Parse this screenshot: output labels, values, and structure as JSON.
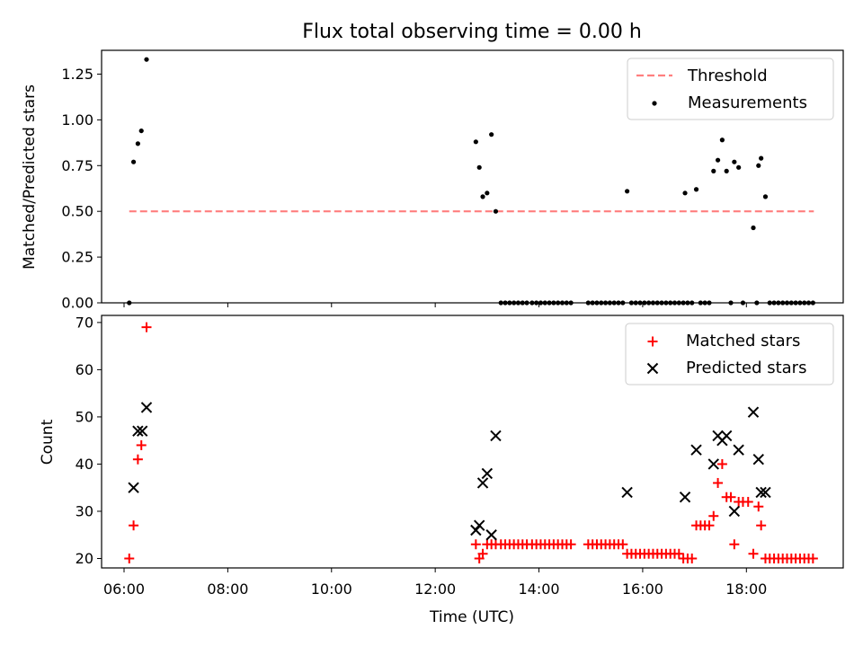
{
  "chart_data": {
    "type": "scatter",
    "title": "Flux total observing time = 0.00 h",
    "xlabel": "Time (UTC)",
    "x_unit": "time of day (UTC, HH:MM)",
    "x_range": [
      "05:34",
      "19:52"
    ],
    "x_ticks": [
      "06:00",
      "08:00",
      "10:00",
      "12:00",
      "14:00",
      "16:00",
      "18:00"
    ],
    "colors": {
      "threshold": "#ff7f7f",
      "measurements": "#000000",
      "matched": "#ff0000",
      "predicted": "#000000"
    },
    "panels": [
      {
        "ylabel": "Matched/Predicted stars",
        "ylim": [
          0,
          1.38
        ],
        "yticks": [
          "0.00",
          "0.25",
          "0.50",
          "0.75",
          "1.00",
          "1.25"
        ],
        "legend_position": "upper right",
        "threshold": {
          "name": "Threshold",
          "y": 0.5,
          "x_start": "06:06",
          "x_end": "19:18",
          "style": "dashed"
        },
        "measurements": {
          "name": "Measurements",
          "points": [
            [
              "06:06",
              0.0
            ],
            [
              "06:11",
              0.77
            ],
            [
              "06:16",
              0.87
            ],
            [
              "06:20",
              0.94
            ],
            [
              "06:26",
              1.33
            ],
            [
              "12:47",
              0.88
            ],
            [
              "12:51",
              0.74
            ],
            [
              "12:55",
              0.58
            ],
            [
              "13:00",
              0.6
            ],
            [
              "13:05",
              0.92
            ],
            [
              "13:10",
              0.5
            ],
            [
              "13:16",
              0.0
            ],
            [
              "13:21",
              0.0
            ],
            [
              "13:26",
              0.0
            ],
            [
              "13:31",
              0.0
            ],
            [
              "13:36",
              0.0
            ],
            [
              "13:41",
              0.0
            ],
            [
              "13:46",
              0.0
            ],
            [
              "13:52",
              0.0
            ],
            [
              "13:57",
              0.0
            ],
            [
              "14:02",
              0.0
            ],
            [
              "14:07",
              0.0
            ],
            [
              "14:12",
              0.0
            ],
            [
              "14:17",
              0.0
            ],
            [
              "14:22",
              0.0
            ],
            [
              "14:27",
              0.0
            ],
            [
              "14:32",
              0.0
            ],
            [
              "14:37",
              0.0
            ],
            [
              "14:57",
              0.0
            ],
            [
              "15:02",
              0.0
            ],
            [
              "15:07",
              0.0
            ],
            [
              "15:12",
              0.0
            ],
            [
              "15:17",
              0.0
            ],
            [
              "15:22",
              0.0
            ],
            [
              "15:27",
              0.0
            ],
            [
              "15:32",
              0.0
            ],
            [
              "15:37",
              0.0
            ],
            [
              "15:42",
              0.61
            ],
            [
              "15:47",
              0.0
            ],
            [
              "15:52",
              0.0
            ],
            [
              "15:57",
              0.0
            ],
            [
              "16:02",
              0.0
            ],
            [
              "16:07",
              0.0
            ],
            [
              "16:12",
              0.0
            ],
            [
              "16:17",
              0.0
            ],
            [
              "16:22",
              0.0
            ],
            [
              "16:27",
              0.0
            ],
            [
              "16:32",
              0.0
            ],
            [
              "16:37",
              0.0
            ],
            [
              "16:42",
              0.0
            ],
            [
              "16:47",
              0.0
            ],
            [
              "16:49",
              0.6
            ],
            [
              "16:52",
              0.0
            ],
            [
              "16:57",
              0.0
            ],
            [
              "17:02",
              0.62
            ],
            [
              "17:07",
              0.0
            ],
            [
              "17:12",
              0.0
            ],
            [
              "17:17",
              0.0
            ],
            [
              "17:22",
              0.72
            ],
            [
              "17:27",
              0.78
            ],
            [
              "17:32",
              0.89
            ],
            [
              "17:37",
              0.72
            ],
            [
              "17:42",
              0.0
            ],
            [
              "17:46",
              0.77
            ],
            [
              "17:51",
              0.74
            ],
            [
              "17:56",
              0.0
            ],
            [
              "18:08",
              0.41
            ],
            [
              "18:12",
              0.0
            ],
            [
              "18:14",
              0.75
            ],
            [
              "18:17",
              0.79
            ],
            [
              "18:22",
              0.58
            ],
            [
              "18:27",
              0.0
            ],
            [
              "18:32",
              0.0
            ],
            [
              "18:37",
              0.0
            ],
            [
              "18:42",
              0.0
            ],
            [
              "18:47",
              0.0
            ],
            [
              "18:52",
              0.0
            ],
            [
              "18:57",
              0.0
            ],
            [
              "19:02",
              0.0
            ],
            [
              "19:07",
              0.0
            ],
            [
              "19:12",
              0.0
            ],
            [
              "19:17",
              0.0
            ]
          ]
        }
      },
      {
        "ylabel": "Count",
        "ylim": [
          18,
          71.5
        ],
        "yticks": [
          "20",
          "30",
          "40",
          "50",
          "60",
          "70"
        ],
        "legend_position": "upper right",
        "series": [
          {
            "name": "Matched stars",
            "marker": "+",
            "points": [
              [
                "06:06",
                20
              ],
              [
                "06:11",
                27
              ],
              [
                "06:16",
                41
              ],
              [
                "06:20",
                44
              ],
              [
                "06:26",
                69
              ],
              [
                "12:47",
                23
              ],
              [
                "12:51",
                20
              ],
              [
                "12:55",
                21
              ],
              [
                "13:00",
                23
              ],
              [
                "13:05",
                23
              ],
              [
                "13:10",
                23
              ],
              [
                "13:16",
                23
              ],
              [
                "13:21",
                23
              ],
              [
                "13:26",
                23
              ],
              [
                "13:31",
                23
              ],
              [
                "13:36",
                23
              ],
              [
                "13:41",
                23
              ],
              [
                "13:46",
                23
              ],
              [
                "13:52",
                23
              ],
              [
                "13:57",
                23
              ],
              [
                "14:02",
                23
              ],
              [
                "14:07",
                23
              ],
              [
                "14:12",
                23
              ],
              [
                "14:17",
                23
              ],
              [
                "14:22",
                23
              ],
              [
                "14:27",
                23
              ],
              [
                "14:32",
                23
              ],
              [
                "14:37",
                23
              ],
              [
                "14:57",
                23
              ],
              [
                "15:02",
                23
              ],
              [
                "15:07",
                23
              ],
              [
                "15:12",
                23
              ],
              [
                "15:17",
                23
              ],
              [
                "15:22",
                23
              ],
              [
                "15:27",
                23
              ],
              [
                "15:32",
                23
              ],
              [
                "15:37",
                23
              ],
              [
                "15:42",
                21
              ],
              [
                "15:47",
                21
              ],
              [
                "15:52",
                21
              ],
              [
                "15:57",
                21
              ],
              [
                "16:02",
                21
              ],
              [
                "16:07",
                21
              ],
              [
                "16:12",
                21
              ],
              [
                "16:17",
                21
              ],
              [
                "16:22",
                21
              ],
              [
                "16:27",
                21
              ],
              [
                "16:32",
                21
              ],
              [
                "16:37",
                21
              ],
              [
                "16:42",
                21
              ],
              [
                "16:47",
                20
              ],
              [
                "16:52",
                20
              ],
              [
                "16:57",
                20
              ],
              [
                "17:02",
                27
              ],
              [
                "17:07",
                27
              ],
              [
                "17:12",
                27
              ],
              [
                "17:17",
                27
              ],
              [
                "17:22",
                29
              ],
              [
                "17:27",
                36
              ],
              [
                "17:32",
                40
              ],
              [
                "17:37",
                33
              ],
              [
                "17:42",
                33
              ],
              [
                "17:46",
                23
              ],
              [
                "17:51",
                32
              ],
              [
                "17:56",
                32
              ],
              [
                "18:02",
                32
              ],
              [
                "18:08",
                21
              ],
              [
                "18:14",
                31
              ],
              [
                "18:17",
                27
              ],
              [
                "18:22",
                20
              ],
              [
                "18:27",
                20
              ],
              [
                "18:32",
                20
              ],
              [
                "18:37",
                20
              ],
              [
                "18:42",
                20
              ],
              [
                "18:47",
                20
              ],
              [
                "18:52",
                20
              ],
              [
                "18:57",
                20
              ],
              [
                "19:02",
                20
              ],
              [
                "19:07",
                20
              ],
              [
                "19:12",
                20
              ],
              [
                "19:17",
                20
              ]
            ]
          },
          {
            "name": "Predicted stars",
            "marker": "x",
            "points": [
              [
                "06:11",
                35
              ],
              [
                "06:16",
                47
              ],
              [
                "06:21",
                47
              ],
              [
                "06:26",
                52
              ],
              [
                "12:47",
                26
              ],
              [
                "12:51",
                27
              ],
              [
                "12:55",
                36
              ],
              [
                "13:00",
                38
              ],
              [
                "13:05",
                25
              ],
              [
                "13:10",
                46
              ],
              [
                "15:42",
                34
              ],
              [
                "16:49",
                33
              ],
              [
                "17:02",
                43
              ],
              [
                "17:22",
                40
              ],
              [
                "17:27",
                46
              ],
              [
                "17:32",
                45
              ],
              [
                "17:37",
                46
              ],
              [
                "17:46",
                30
              ],
              [
                "17:51",
                43
              ],
              [
                "18:08",
                51
              ],
              [
                "18:14",
                41
              ],
              [
                "18:17",
                34
              ],
              [
                "18:22",
                34
              ]
            ]
          }
        ]
      }
    ]
  }
}
